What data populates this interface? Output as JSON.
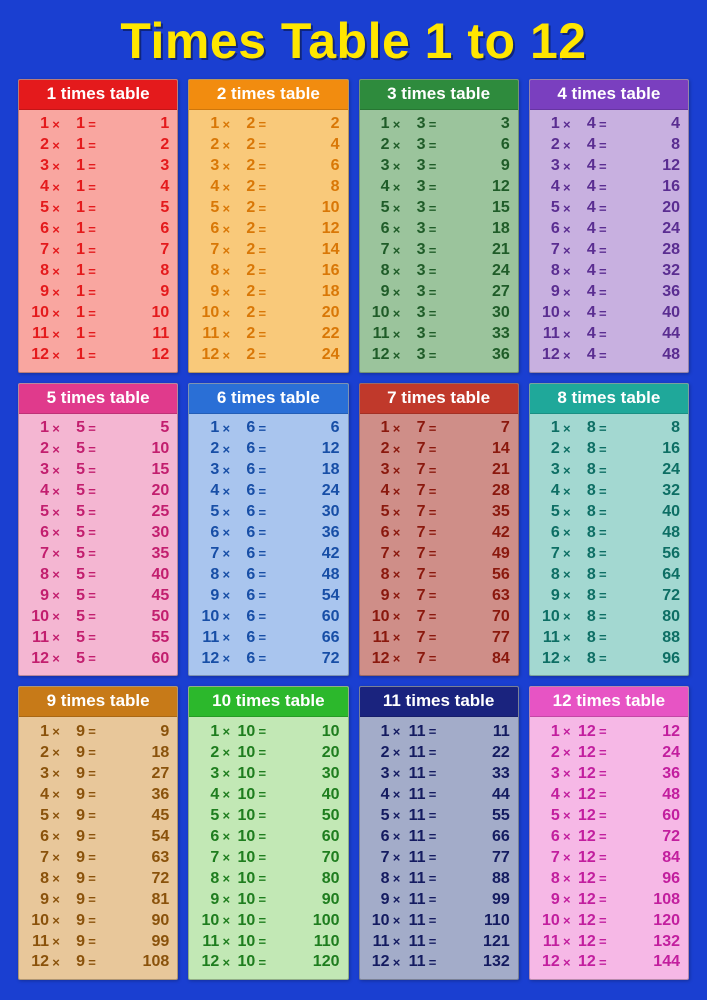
{
  "title": "Times Table 1 to 12",
  "title_color": "#ffe600",
  "background_color": "#1a3fd1",
  "op_symbol": "×",
  "eq_symbol": "=",
  "tables": [
    {
      "n": 1,
      "label": "1 times table",
      "header_bg": "#e41a1c",
      "body_bg": "#f9a6a0",
      "text_color": "#e41a1c"
    },
    {
      "n": 2,
      "label": "2 times table",
      "header_bg": "#f28c0f",
      "body_bg": "#f9c97a",
      "text_color": "#d97706"
    },
    {
      "n": 3,
      "label": "3 times table",
      "header_bg": "#2e8b3d",
      "body_bg": "#9bc49c",
      "text_color": "#1f5c28"
    },
    {
      "n": 4,
      "label": "4 times table",
      "header_bg": "#7a3fbf",
      "body_bg": "#c8b0e0",
      "text_color": "#5a2d91"
    },
    {
      "n": 5,
      "label": "5 times table",
      "header_bg": "#e03a8c",
      "body_bg": "#f4b6d2",
      "text_color": "#c21e6e"
    },
    {
      "n": 6,
      "label": "6 times table",
      "header_bg": "#2a6fd6",
      "body_bg": "#a9c5ee",
      "text_color": "#174ea6"
    },
    {
      "n": 7,
      "label": "7 times table",
      "header_bg": "#c0392b",
      "body_bg": "#cf8e88",
      "text_color": "#8a180d"
    },
    {
      "n": 8,
      "label": "8 times table",
      "header_bg": "#1fa89a",
      "body_bg": "#a3d8d1",
      "text_color": "#0d6e64"
    },
    {
      "n": 9,
      "label": "9 times table",
      "header_bg": "#c77a18",
      "body_bg": "#e8c79a",
      "text_color": "#8a520b"
    },
    {
      "n": 10,
      "label": "10 times table",
      "header_bg": "#2cb82c",
      "body_bg": "#c2e8b5",
      "text_color": "#1e7d1e"
    },
    {
      "n": 11,
      "label": "11 times table",
      "header_bg": "#1a237e",
      "body_bg": "#a3acc9",
      "text_color": "#141b60"
    },
    {
      "n": 12,
      "label": "12 times table",
      "header_bg": "#e754c4",
      "body_bg": "#f6b8e6",
      "text_color": "#c21e9e"
    }
  ]
}
